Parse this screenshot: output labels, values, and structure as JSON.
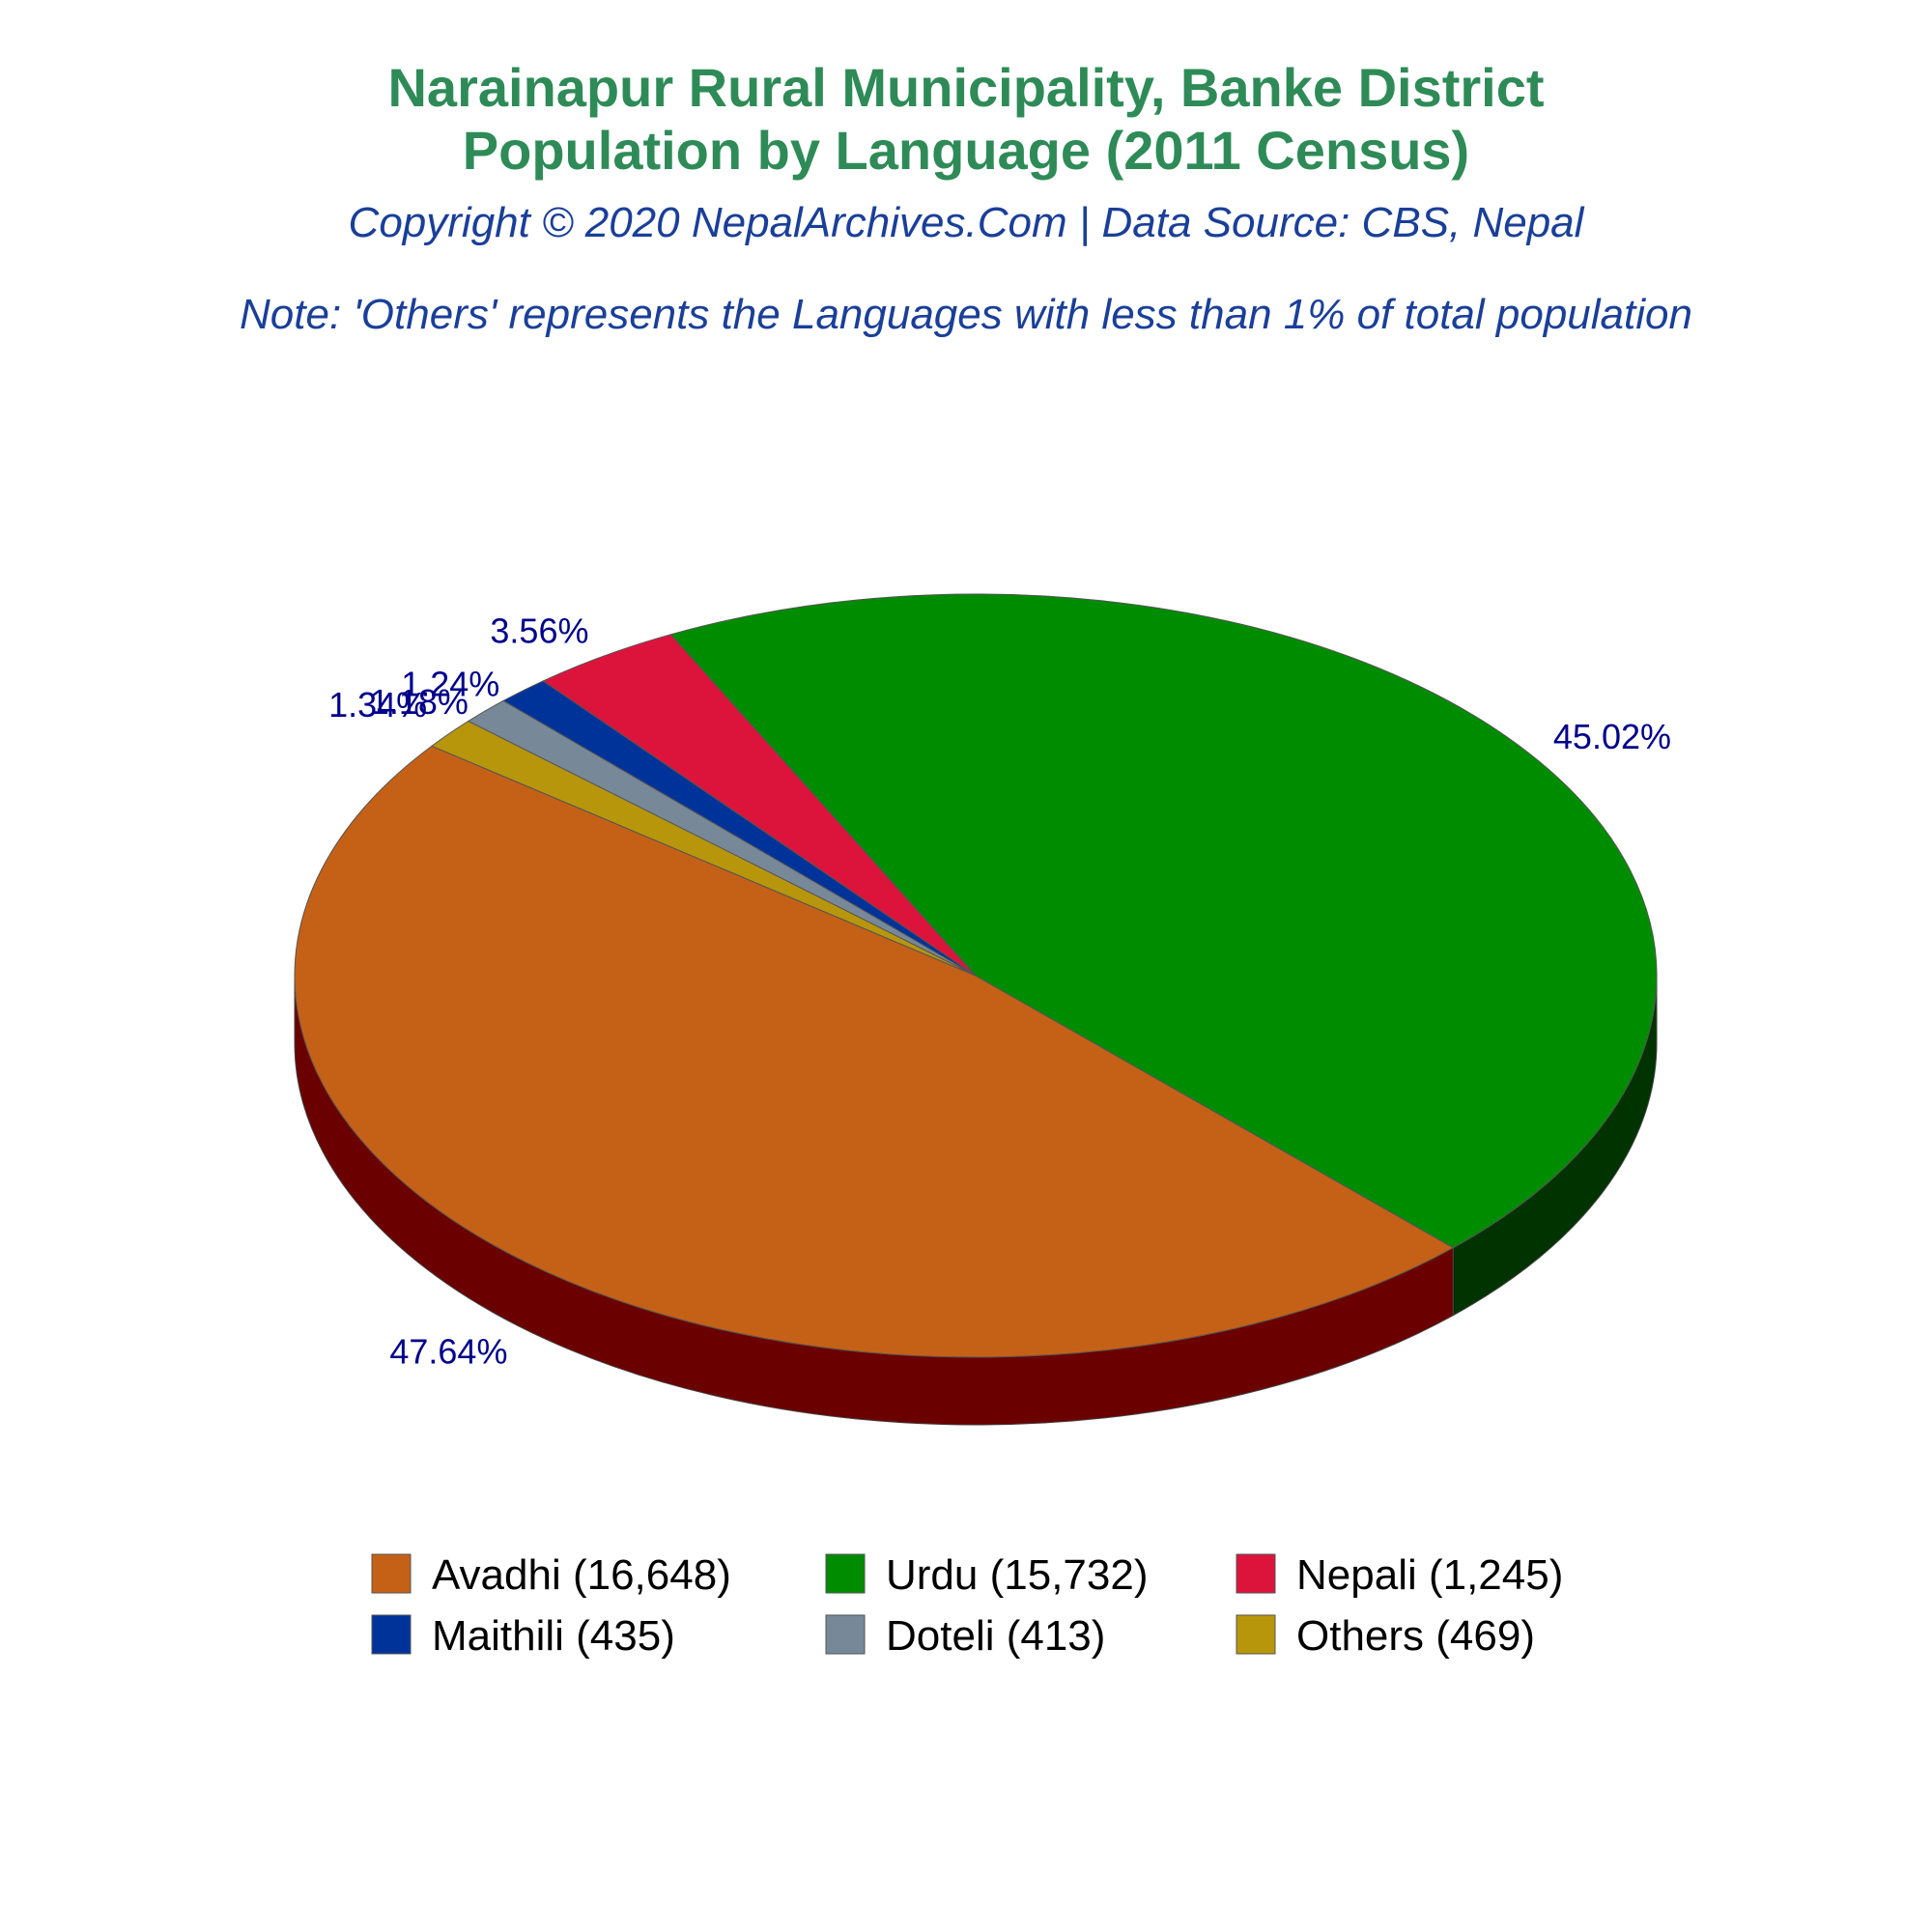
{
  "title_line1": "Narainapur Rural Municipality, Banke District",
  "title_line2": "Population by Language (2011 Census)",
  "copyright": "Copyright © 2020 NepalArchives.Com | Data Source: CBS, Nepal",
  "note": "Note: 'Others' represents the Languages with less than 1% of total population",
  "chart_data": {
    "type": "pie",
    "style": "3d",
    "categories": [
      "Avadhi",
      "Urdu",
      "Nepali",
      "Maithili",
      "Doteli",
      "Others"
    ],
    "values": [
      16648,
      15732,
      1245,
      435,
      413,
      469
    ],
    "percent_labels": [
      "47.64%",
      "45.02%",
      "3.56%",
      "1.24%",
      "1.18%",
      "1.34%"
    ],
    "colors": [
      "#c56116",
      "#008c00",
      "#dc143c",
      "#003399",
      "#778899",
      "#b8960c"
    ],
    "side_colors": [
      "#6b0000",
      "#003300",
      "#6b0000",
      "#000033",
      "#333333",
      "#5a4a00"
    ],
    "legend_labels": [
      "Avadhi (16,648)",
      "Urdu (15,732)",
      "Nepali (1,245)",
      "Maithili (435)",
      "Doteli (413)",
      "Others (469)"
    ],
    "legend_position": "bottom"
  }
}
